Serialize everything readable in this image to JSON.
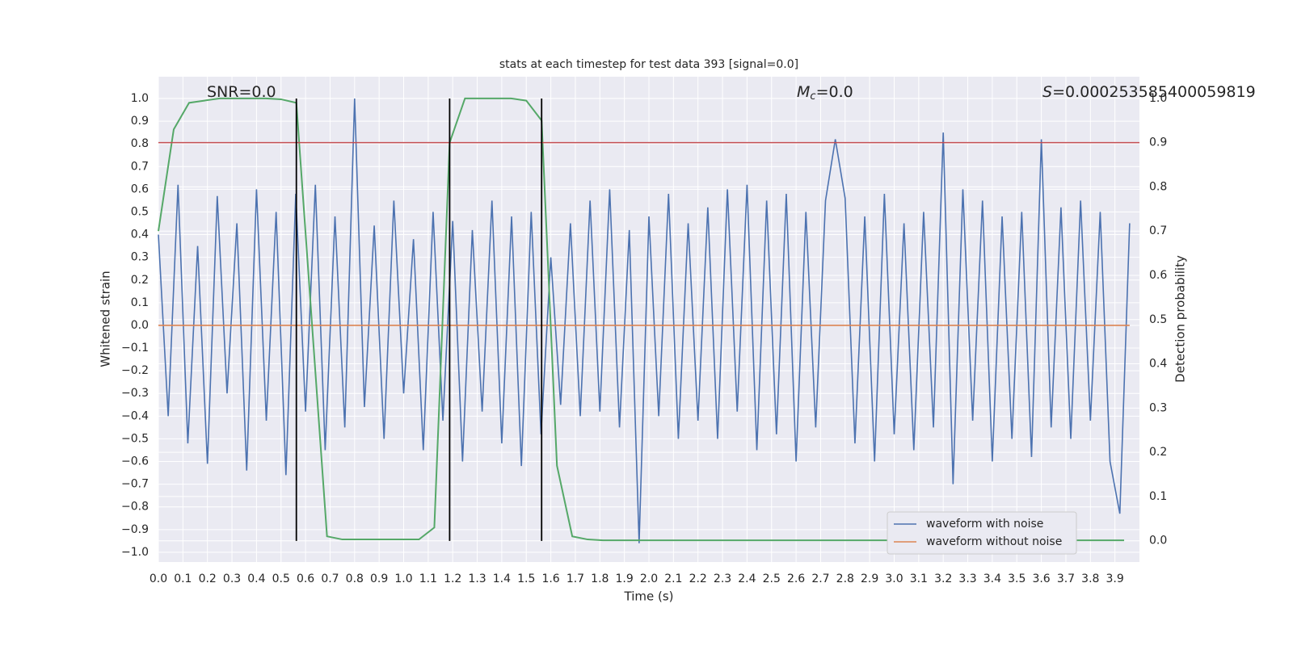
{
  "chart_data": {
    "type": "line",
    "title": "stats at each timestep for test data 393 [signal=0.0]",
    "xlabel": "Time (s)",
    "ylabel": "Whitened strain",
    "y2label": "Detection probability",
    "xlim": [
      0,
      4.0
    ],
    "ylim": [
      -1.043,
      1.096
    ],
    "y2lim": [
      -0.048,
      1.049
    ],
    "xticks": [
      {
        "value": 0,
        "label": "0.0"
      },
      0.1,
      0.2,
      0.3,
      0.4,
      0.5,
      0.6,
      0.7,
      0.8,
      0.9,
      {
        "value": 1,
        "label": "1.0"
      },
      1.1,
      1.2,
      1.3,
      1.4,
      1.5,
      1.6,
      1.7,
      1.8,
      1.9,
      {
        "value": 2,
        "label": "2.0"
      },
      2.1,
      2.2,
      2.3,
      2.4,
      2.5,
      2.6,
      2.7,
      2.8,
      2.9,
      {
        "value": 3,
        "label": "3.0"
      },
      3.1,
      3.2,
      3.3,
      3.4,
      3.5,
      3.6,
      3.7,
      3.8,
      3.9
    ],
    "yticks": [
      {
        "value": 1,
        "label": "1.0"
      },
      0.9,
      0.8,
      0.7,
      0.6,
      0.5,
      0.4,
      0.3,
      0.2,
      0.1,
      {
        "value": 0,
        "label": "0.0"
      },
      {
        "value": -0.1,
        "label": "−0.1"
      },
      {
        "value": -0.2,
        "label": "−0.2"
      },
      {
        "value": -0.3,
        "label": "−0.3"
      },
      {
        "value": -0.4,
        "label": "−0.4"
      },
      {
        "value": -0.5,
        "label": "−0.5"
      },
      {
        "value": -0.6,
        "label": "−0.6"
      },
      {
        "value": -0.7,
        "label": "−0.7"
      },
      {
        "value": -0.8,
        "label": "−0.8"
      },
      {
        "value": -0.9,
        "label": "−0.9"
      },
      {
        "value": -1,
        "label": "−1.0"
      }
    ],
    "y2ticks": [
      {
        "value": 0,
        "label": "0.0"
      },
      0.1,
      0.2,
      0.3,
      0.4,
      0.5,
      0.6,
      0.7,
      0.8,
      0.9,
      {
        "value": 1,
        "label": "1.0"
      }
    ],
    "grid": true,
    "legend": "lower right",
    "series": [
      {
        "name": "waveform with noise",
        "color": "#4c72b0",
        "axis": "y",
        "x": [
          0,
          0.04,
          0.08,
          0.12,
          0.16,
          0.2,
          0.24,
          0.28,
          0.32,
          0.36,
          0.4,
          0.44,
          0.48,
          0.52,
          0.56,
          0.6,
          0.64,
          0.68,
          0.72,
          0.76,
          0.8,
          0.84,
          0.88,
          0.92,
          0.96,
          1.0,
          1.04,
          1.08,
          1.12,
          1.16,
          1.2,
          1.24,
          1.28,
          1.32,
          1.36,
          1.4,
          1.44,
          1.48,
          1.52,
          1.56,
          1.6,
          1.64,
          1.68,
          1.72,
          1.76,
          1.8,
          1.84,
          1.88,
          1.92,
          1.96,
          2.0,
          2.04,
          2.08,
          2.12,
          2.16,
          2.2,
          2.24,
          2.28,
          2.32,
          2.36,
          2.4,
          2.44,
          2.48,
          2.52,
          2.56,
          2.6,
          2.64,
          2.68,
          2.72,
          2.76,
          2.8,
          2.84,
          2.88,
          2.92,
          2.96,
          3.0,
          3.04,
          3.08,
          3.12,
          3.16,
          3.2,
          3.24,
          3.28,
          3.32,
          3.36,
          3.4,
          3.44,
          3.48,
          3.52,
          3.56,
          3.6,
          3.64,
          3.68,
          3.72,
          3.76,
          3.8,
          3.84,
          3.88,
          3.92,
          3.96
        ],
        "values": [
          0.4,
          -0.4,
          0.62,
          -0.52,
          0.35,
          -0.61,
          0.57,
          -0.3,
          0.45,
          -0.64,
          0.6,
          -0.42,
          0.5,
          -0.66,
          0.58,
          -0.38,
          0.62,
          -0.55,
          0.48,
          -0.45,
          1.0,
          -0.36,
          0.44,
          -0.5,
          0.55,
          -0.3,
          0.38,
          -0.55,
          0.5,
          -0.42,
          0.46,
          -0.6,
          0.42,
          -0.38,
          0.55,
          -0.52,
          0.48,
          -0.62,
          0.5,
          -0.48,
          0.3,
          -0.35,
          0.45,
          -0.4,
          0.55,
          -0.38,
          0.6,
          -0.45,
          0.42,
          -0.96,
          0.48,
          -0.4,
          0.58,
          -0.5,
          0.45,
          -0.42,
          0.52,
          -0.5,
          0.6,
          -0.38,
          0.62,
          -0.55,
          0.55,
          -0.48,
          0.58,
          -0.6,
          0.5,
          -0.45,
          0.55,
          0.82,
          0.56,
          -0.52,
          0.48,
          -0.6,
          0.58,
          -0.48,
          0.45,
          -0.55,
          0.5,
          -0.45,
          0.85,
          -0.7,
          0.6,
          -0.42,
          0.55,
          -0.6,
          0.48,
          -0.5,
          0.5,
          -0.58,
          0.82,
          -0.45,
          0.52,
          -0.5,
          0.55,
          -0.42,
          0.5,
          -0.6,
          -0.83,
          0.45
        ]
      },
      {
        "name": "waveform without noise",
        "color": "#dd8452",
        "axis": "y",
        "x": [
          0,
          3.96
        ],
        "values": [
          0,
          0
        ]
      },
      {
        "color": "#55a868",
        "axis": "y2",
        "x": [
          0,
          0.0625,
          0.125,
          0.1875,
          0.25,
          0.3125,
          0.375,
          0.4375,
          0.5,
          0.5625,
          0.625,
          0.6875,
          0.75,
          0.8125,
          0.875,
          0.9375,
          1.0,
          1.0625,
          1.125,
          1.1875,
          1.25,
          1.3125,
          1.375,
          1.4375,
          1.5,
          1.5625,
          1.625,
          1.6875,
          1.75,
          1.8125,
          1.875,
          1.9375,
          2.0,
          2.0625,
          2.125,
          2.1875,
          2.25,
          2.3125,
          2.375,
          2.4375,
          2.5,
          2.5625,
          2.625,
          2.6875,
          2.75,
          2.8125,
          2.875,
          2.9375,
          3.0,
          3.0625,
          3.125,
          3.1875,
          3.25,
          3.3125,
          3.375,
          3.4375,
          3.5,
          3.5625,
          3.625,
          3.6875,
          3.75,
          3.8125,
          3.875,
          3.9375
        ],
        "values": [
          0.7,
          0.93,
          0.99,
          0.995,
          1.0,
          1.0,
          1.0,
          1.0,
          0.998,
          0.99,
          0.5,
          0.01,
          0.003,
          0.003,
          0.003,
          0.003,
          0.003,
          0.003,
          0.03,
          0.9,
          1.0,
          1.0,
          1.0,
          1.0,
          0.995,
          0.95,
          0.17,
          0.01,
          0.003,
          0.001,
          0.001,
          0.001,
          0.001,
          0.001,
          0.001,
          0.001,
          0.001,
          0.001,
          0.001,
          0.001,
          0.001,
          0.001,
          0.001,
          0.001,
          0.001,
          0.001,
          0.001,
          0.001,
          0.001,
          0.001,
          0.001,
          0.001,
          0.001,
          0.001,
          0.001,
          0.001,
          0.001,
          0.001,
          0.001,
          0.001,
          0.001,
          0.001,
          0.001,
          0.001
        ]
      }
    ],
    "threshold": {
      "value": 0.9,
      "axis": "y2",
      "color": "#c44e52"
    },
    "vlines": {
      "x": [
        0.5625,
        1.1875,
        1.5625
      ],
      "ymin": -0.95,
      "ymax": 1.0,
      "color": "#000000"
    },
    "annotations": [
      {
        "text": "SNR=0.0"
      },
      {
        "symbol": "M",
        "subscript": "c",
        "text": "=0.0"
      },
      {
        "symbol": "S",
        "text": "=0.000253585400059819"
      }
    ]
  }
}
